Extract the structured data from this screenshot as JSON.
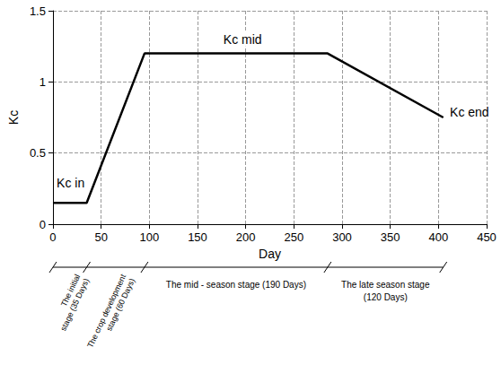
{
  "chart_data": {
    "type": "line",
    "x": [
      0,
      35,
      95,
      285,
      405
    ],
    "values": [
      0.15,
      0.15,
      1.2,
      1.2,
      0.75
    ],
    "color": "#000000",
    "xlabel": "Day",
    "ylabel": "Kc",
    "xlim": [
      0,
      450
    ],
    "xticks": [
      0,
      50,
      100,
      150,
      200,
      250,
      300,
      350,
      400,
      450
    ],
    "ylim": [
      0,
      1.5
    ],
    "yticks": [
      0,
      0.5,
      1,
      1.5
    ],
    "grid": true,
    "annotations": [
      {
        "text": "Kc in",
        "x": 2,
        "y": 0.29
      },
      {
        "text": "Kc mid",
        "x": 175,
        "y": 1.3
      },
      {
        "text": "Kc end",
        "x": 410,
        "y": 0.79
      }
    ],
    "stages": [
      {
        "label": "The initial stage (35 Days)",
        "start": 0,
        "end": 35
      },
      {
        "label": "The crop development stage (60 Days)",
        "start": 35,
        "end": 95
      },
      {
        "label": "The mid - season stage (190 Days)",
        "start": 95,
        "end": 285
      },
      {
        "label": "The late season stage (120 Days)",
        "start": 285,
        "end": 405
      }
    ]
  }
}
